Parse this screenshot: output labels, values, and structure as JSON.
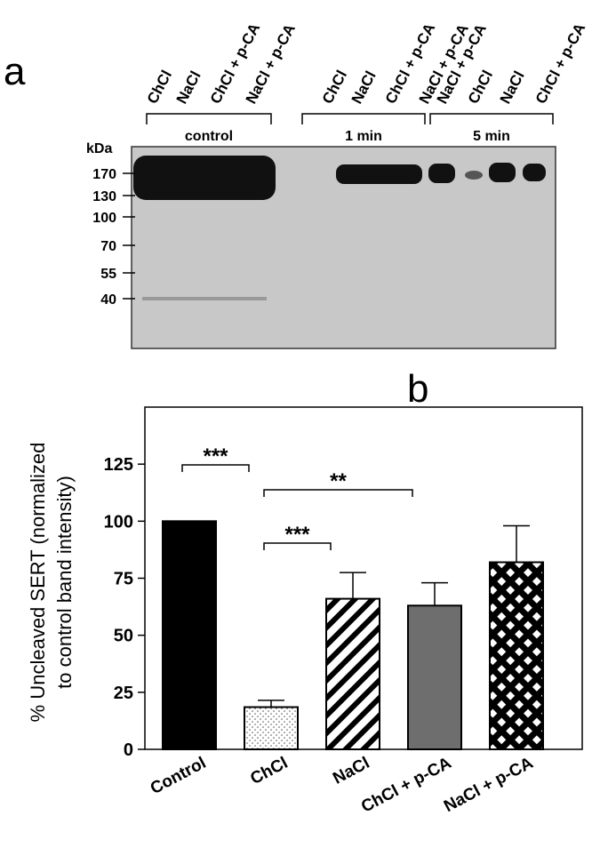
{
  "panel_a": {
    "label": "a",
    "unit": "kDa",
    "lanes": [
      "ChCl",
      "NaCl",
      "ChCl + p-CA",
      "NaCl + p-CA",
      "ChCl",
      "NaCl",
      "ChCl + p-CA",
      "NaCl + p-CA",
      "NaCl + p-CA",
      "ChCl",
      "NaCl",
      "ChCl + p-CA"
    ],
    "groups": [
      "control",
      "1 min",
      "5 min"
    ],
    "markers": [
      170,
      130,
      100,
      70,
      55,
      40
    ]
  },
  "chart_data": {
    "type": "bar",
    "label": "b",
    "ylabel": [
      "% Uncleaved SERT (normalized",
      "to control band intensity)"
    ],
    "categories": [
      "Control",
      "ChCl",
      "NaCl",
      "ChCl + p-CA",
      "NaCl + p-CA"
    ],
    "values": [
      100,
      18.5,
      66,
      63,
      82
    ],
    "errors": [
      0,
      3,
      11.5,
      10,
      16
    ],
    "colors": [
      "#000000",
      "#ffffff",
      "#ffffff",
      "#6e6e6e",
      "#ffffff"
    ],
    "ylim": [
      0,
      150
    ],
    "yticks": [
      0,
      25,
      50,
      75,
      100,
      125
    ],
    "annotations": [
      {
        "text": "***",
        "from": "Control",
        "to": "ChCl"
      },
      {
        "text": "**",
        "from": "ChCl",
        "to": "ChCl + p-CA"
      },
      {
        "text": "***",
        "from": "ChCl",
        "to": "NaCl"
      }
    ]
  }
}
